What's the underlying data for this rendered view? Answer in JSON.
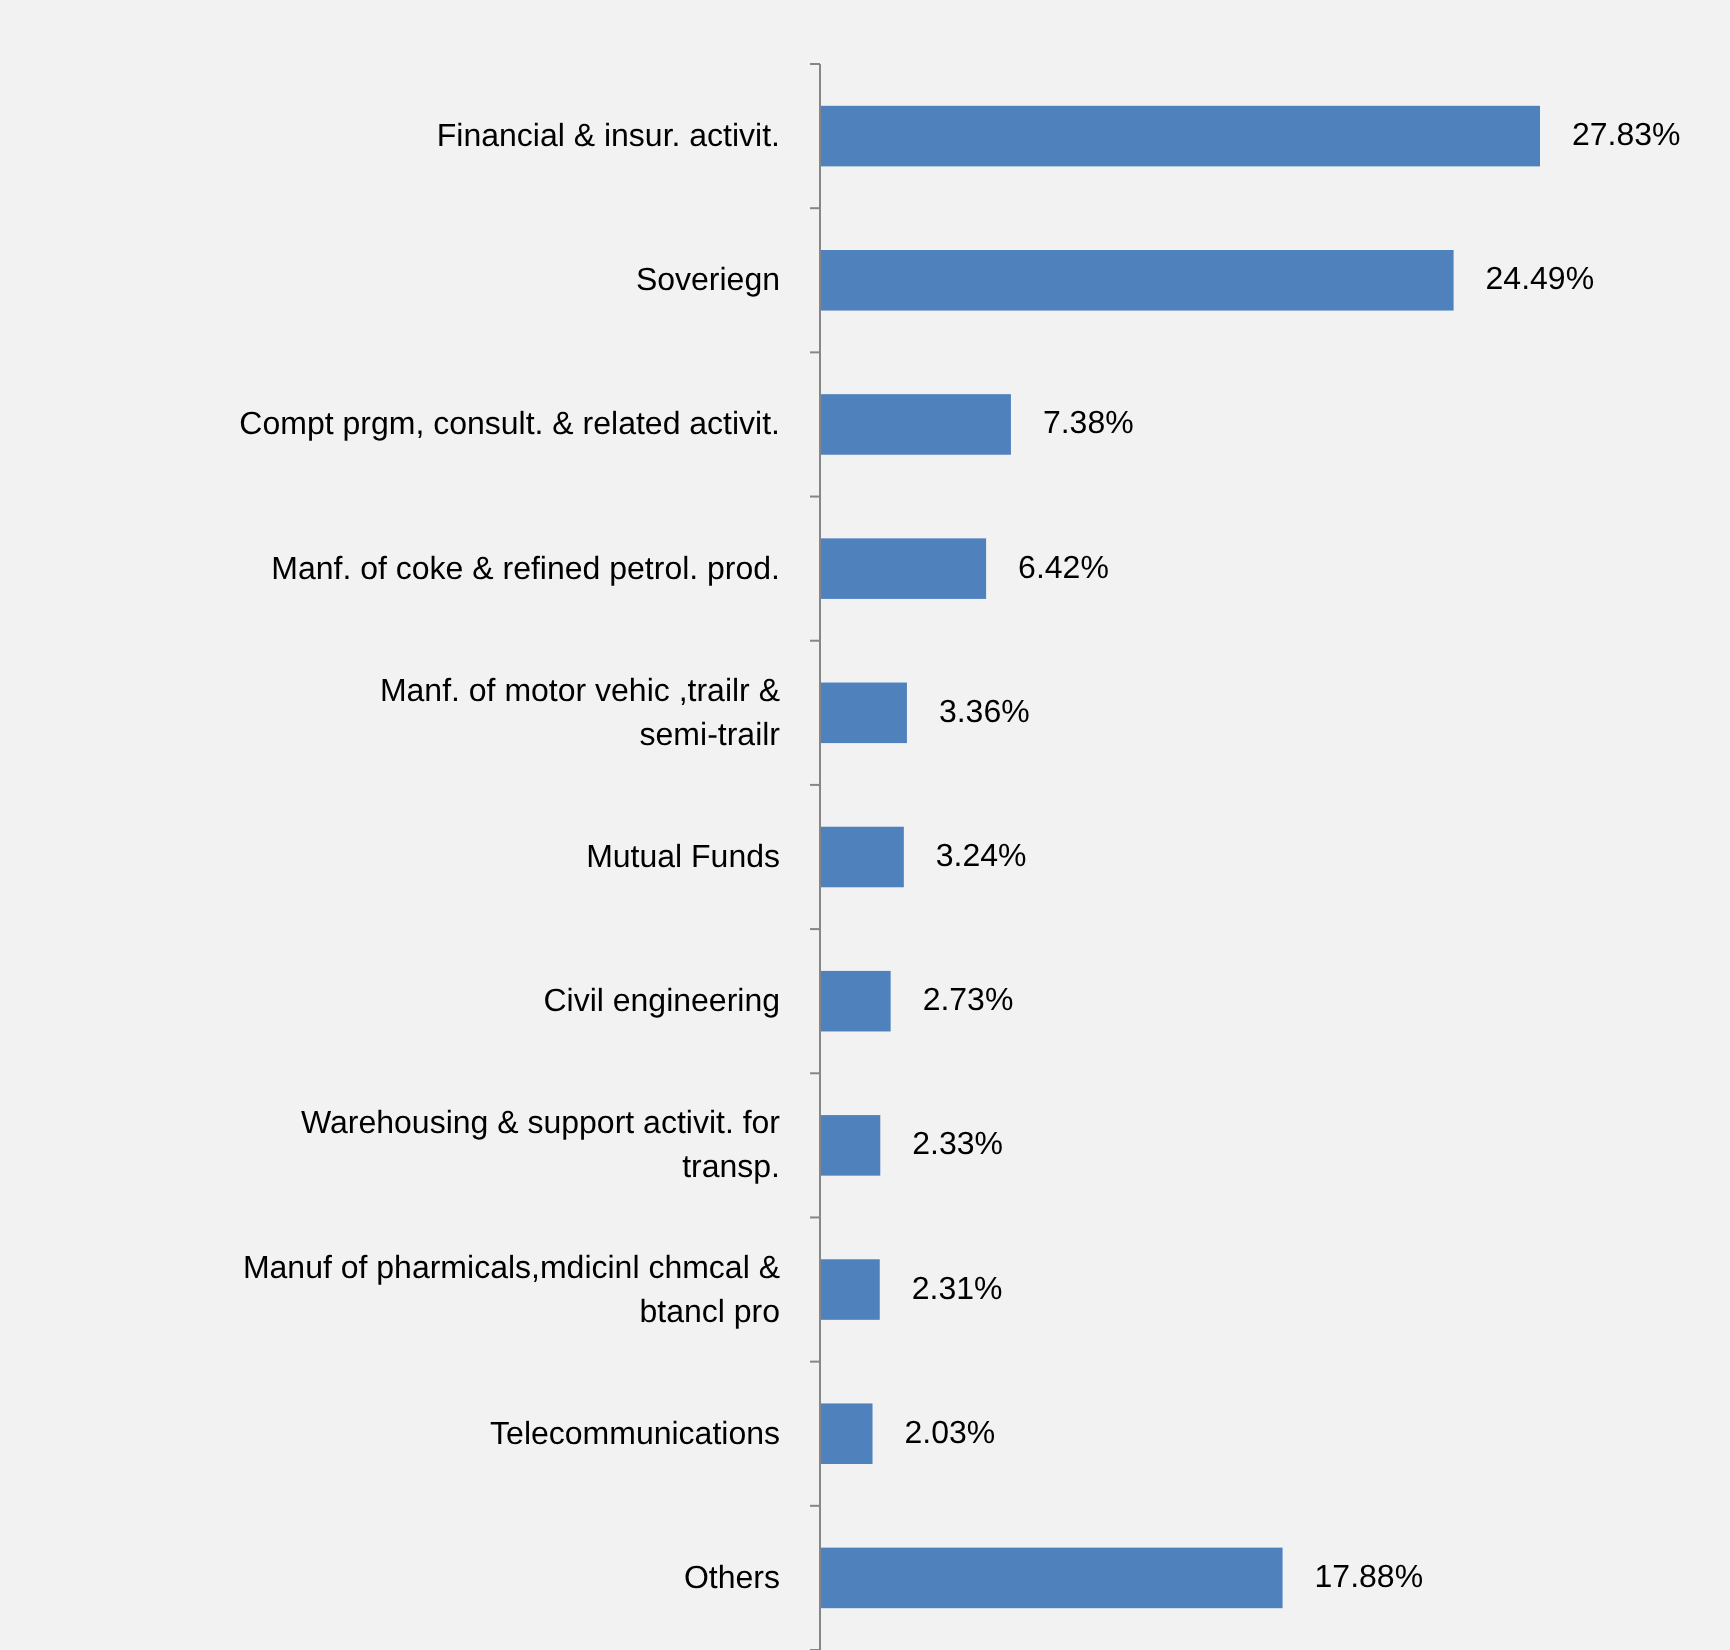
{
  "chart_data": {
    "type": "bar",
    "orientation": "horizontal",
    "categories": [
      "Financial & insur. activit.",
      "Soveriegn",
      "Compt prgm, consult. & related activit.",
      "Manf. of coke & refined petrol. prod.",
      "Manf. of motor vehic ,trailr & semi-trailr",
      "Mutual Funds",
      "Civil engineering",
      "Warehousing & support activit. for transp.",
      "Manuf of pharmicals,mdicinl chmcal & btancl pro",
      "Telecommunications",
      "Others"
    ],
    "values": [
      27.83,
      24.49,
      7.38,
      6.42,
      3.36,
      3.24,
      2.73,
      2.33,
      2.31,
      2.03,
      17.88
    ],
    "value_labels": [
      "27.83%",
      "24.49%",
      "7.38%",
      "6.42%",
      "3.36%",
      "3.24%",
      "2.73%",
      "2.33%",
      "2.31%",
      "2.03%",
      "17.88%"
    ],
    "color": "#4f81bd"
  }
}
